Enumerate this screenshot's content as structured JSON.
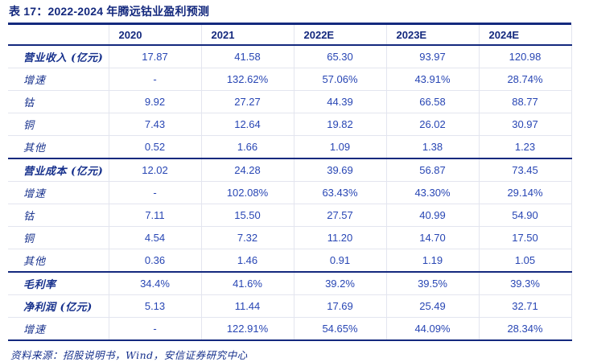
{
  "title": "表 17：2022-2024 年腾远钴业盈利预测",
  "colors": {
    "navy_rule": "#14297e",
    "label_blue": "#16308c",
    "value_blue": "#2846b4",
    "grid_line": "#e3e5ef"
  },
  "table": {
    "columns": [
      "2020",
      "2021",
      "2022E",
      "2023E",
      "2024E"
    ],
    "rows": [
      {
        "label": "营业收入 (亿元)",
        "bold": true,
        "section": false,
        "values": [
          "17.87",
          "41.58",
          "65.30",
          "93.97",
          "120.98"
        ]
      },
      {
        "label": "增速",
        "bold": false,
        "section": false,
        "values": [
          "-",
          "132.62%",
          "57.06%",
          "43.91%",
          "28.74%"
        ]
      },
      {
        "label": "钴",
        "bold": false,
        "section": false,
        "values": [
          "9.92",
          "27.27",
          "44.39",
          "66.58",
          "88.77"
        ]
      },
      {
        "label": "铜",
        "bold": false,
        "section": false,
        "values": [
          "7.43",
          "12.64",
          "19.82",
          "26.02",
          "30.97"
        ]
      },
      {
        "label": "其他",
        "bold": false,
        "section": false,
        "values": [
          "0.52",
          "1.66",
          "1.09",
          "1.38",
          "1.23"
        ]
      },
      {
        "label": "营业成本 (亿元)",
        "bold": true,
        "section": true,
        "values": [
          "12.02",
          "24.28",
          "39.69",
          "56.87",
          "73.45"
        ]
      },
      {
        "label": "增速",
        "bold": false,
        "section": false,
        "values": [
          "-",
          "102.08%",
          "63.43%",
          "43.30%",
          "29.14%"
        ]
      },
      {
        "label": "钴",
        "bold": false,
        "section": false,
        "values": [
          "7.11",
          "15.50",
          "27.57",
          "40.99",
          "54.90"
        ]
      },
      {
        "label": "铜",
        "bold": false,
        "section": false,
        "values": [
          "4.54",
          "7.32",
          "11.20",
          "14.70",
          "17.50"
        ]
      },
      {
        "label": "其他",
        "bold": false,
        "section": false,
        "values": [
          "0.36",
          "1.46",
          "0.91",
          "1.19",
          "1.05"
        ]
      },
      {
        "label": "毛利率",
        "bold": true,
        "section": true,
        "values": [
          "34.4%",
          "41.6%",
          "39.2%",
          "39.5%",
          "39.3%"
        ]
      },
      {
        "label": "净利润 (亿元)",
        "bold": true,
        "section": false,
        "values": [
          "5.13",
          "11.44",
          "17.69",
          "25.49",
          "32.71"
        ]
      },
      {
        "label": "增速",
        "bold": false,
        "section": false,
        "values": [
          "-",
          "122.91%",
          "54.65%",
          "44.09%",
          "28.34%"
        ]
      }
    ]
  },
  "footer": "资料来源：招股说明书，Wind，安信证券研究中心"
}
